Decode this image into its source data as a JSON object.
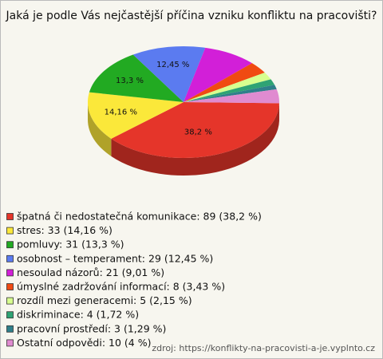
{
  "chart_data": {
    "type": "pie",
    "title": "Jaká je podle Vás nejčastější příčina vzniku konfliktu na pracovišti?",
    "categories": [
      "špatná či nedostatečná komunikace: 89 (38,2 %)",
      "stres: 33 (14,16 %)",
      "pomluvy: 31 (13,3 %)",
      "osobnost – temperament: 29 (12,45 %)",
      "nesoulad názorů: 21 (9,01 %)",
      "úmyslné zadržování informací: 8 (3,43 %)",
      "rozdíl mezi generacemi: 5 (2,15 %)",
      "diskriminace: 4 (1,72 %)",
      "pracovní prostředí: 3 (1,29 %)",
      "Ostatní odpovědi: 10 (4 %)"
    ],
    "values": [
      38.2,
      14.16,
      13.3,
      12.45,
      9.01,
      3.43,
      2.15,
      1.72,
      1.29,
      4
    ],
    "value_labels": [
      "38,2 %",
      "14,16 %",
      "13,3 %",
      "12,45 %",
      null,
      null,
      null,
      null,
      null,
      null
    ],
    "colors": [
      "#e5352a",
      "#fbe83a",
      "#22aa22",
      "#5b7bf0",
      "#d21fd8",
      "#f04a12",
      "#d7ff8f",
      "#2fa374",
      "#2f7f8a",
      "#e08bd0"
    ],
    "source": "zdroj: https://konflikty-na-pracovisti-a-je.vyplnto.cz"
  }
}
